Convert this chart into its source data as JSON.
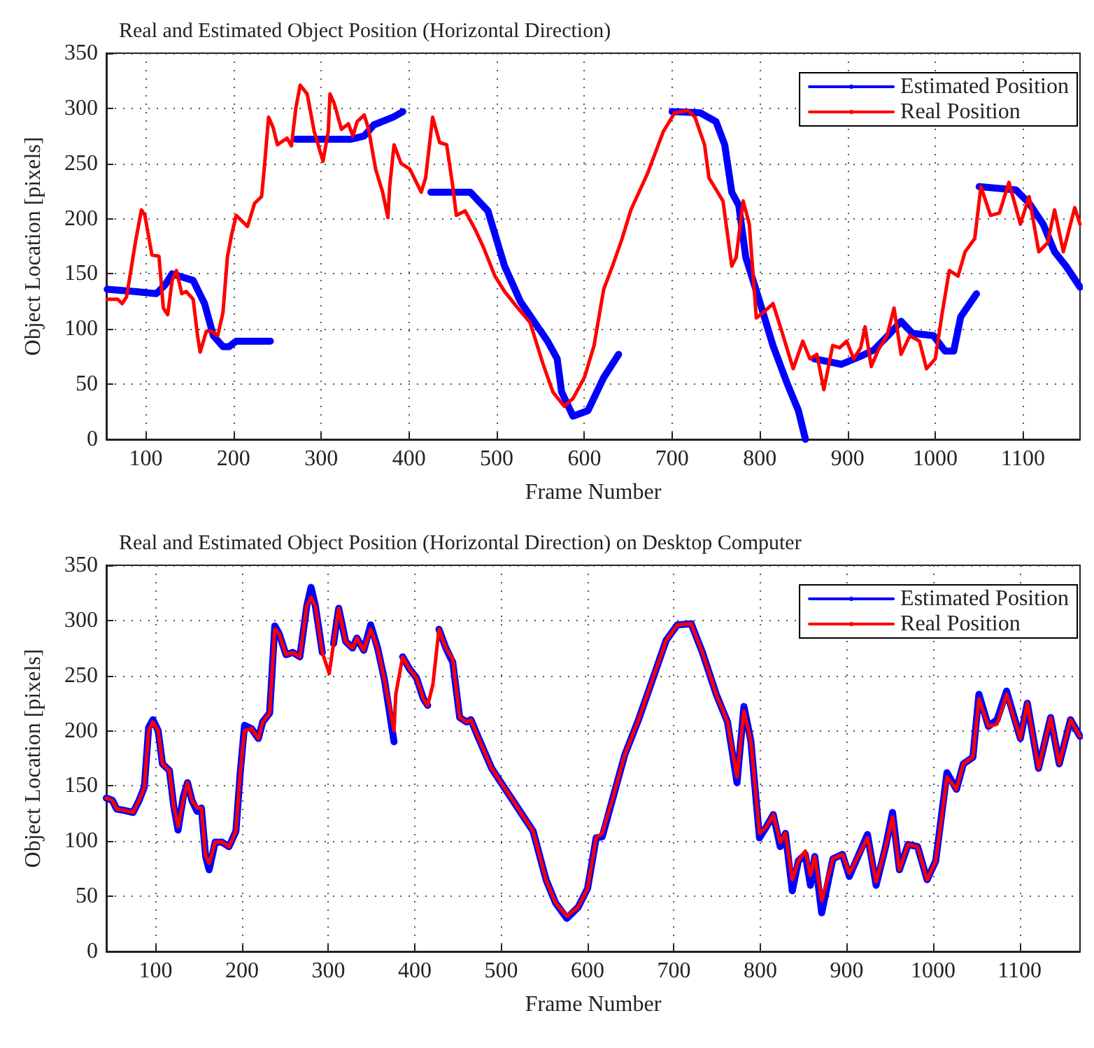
{
  "chart_data": [
    {
      "type": "line",
      "title": "Real and Estimated Object Position (Horizontal Direction)",
      "xlabel": "Frame Number",
      "ylabel": "Object Location [pixels]",
      "xlim": [
        55,
        1165
      ],
      "xticks": [
        100,
        200,
        300,
        400,
        500,
        600,
        700,
        800,
        900,
        1000,
        1100
      ],
      "ylim": [
        0,
        350
      ],
      "yticks": [
        0,
        50,
        100,
        150,
        200,
        250,
        300,
        350
      ],
      "grid": true,
      "legend": "top right",
      "marker": "none",
      "line_style": "solid",
      "series": [
        {
          "name": "Estimated Position",
          "color": "#0000ff",
          "x": [
            56,
            88,
            112,
            122,
            130,
            154,
            167,
            177,
            188,
            195,
            203,
            242,
            256,
            271,
            334,
            349,
            360,
            382,
            393,
            410,
            425,
            470,
            490,
            509,
            527,
            558,
            569,
            574,
            587,
            604,
            622,
            639,
            670,
            700,
            732,
            750,
            760,
            768,
            776,
            784,
            799,
            815,
            831,
            844,
            852,
            855,
            862,
            893,
            914,
            930,
            946,
            961,
            974,
            998,
            1011,
            1021,
            1029,
            1047,
            1049,
            1050,
            1092,
            1107,
            1123,
            1136,
            1149,
            1165
          ],
          "values": [
            136,
            134,
            132,
            140,
            150,
            144,
            123,
            94,
            84,
            84,
            89,
            89,
            null,
            272,
            272,
            275,
            285,
            292,
            297,
            null,
            224,
            224,
            207,
            157,
            125,
            89,
            73,
            43,
            21,
            26,
            56,
            77,
            null,
            297,
            296,
            288,
            267,
            224,
            212,
            165,
            127,
            85,
            51,
            26,
            0,
            null,
            73,
            68,
            75,
            81,
            94,
            107,
            96,
            94,
            80,
            80,
            111,
            132,
            null,
            229,
            226,
            214,
            195,
            170,
            157,
            138
          ]
        },
        {
          "name": "Real Position",
          "color": "#ff0000",
          "x": [
            56,
            68,
            73,
            78,
            83,
            88,
            95,
            99,
            107,
            115,
            120,
            125,
            130,
            135,
            141,
            146,
            154,
            159,
            162,
            169,
            175,
            182,
            188,
            193,
            198,
            203,
            216,
            224,
            232,
            235,
            240,
            245,
            250,
            261,
            266,
            271,
            276,
            284,
            292,
            302,
            308,
            310,
            315,
            323,
            331,
            336,
            341,
            349,
            354,
            362,
            370,
            376,
            378,
            383,
            391,
            401,
            414,
            419,
            427,
            435,
            443,
            450,
            454,
            464,
            475,
            485,
            498,
            509,
            522,
            538,
            553,
            564,
            577,
            587,
            600,
            611,
            622,
            632,
            643,
            653,
            672,
            690,
            703,
            718,
            726,
            737,
            742,
            758,
            768,
            773,
            781,
            788,
            796,
            804,
            815,
            825,
            838,
            849,
            857,
            865,
            873,
            883,
            891,
            899,
            907,
            915,
            920,
            927,
            935,
            945,
            953,
            961,
            971,
            982,
            990,
            1000,
            1008,
            1016,
            1026,
            1034,
            1045,
            1052,
            1063,
            1073,
            1084,
            1097,
            1107,
            1118,
            1128,
            1136,
            1146,
            1159,
            1165
          ],
          "values": [
            127,
            127,
            123,
            129,
            153,
            178,
            208,
            203,
            167,
            166,
            119,
            113,
            144,
            153,
            132,
            134,
            127,
            94,
            79,
            98,
            98,
            94,
            115,
            165,
            186,
            203,
            193,
            214,
            220,
            245,
            292,
            283,
            267,
            273,
            266,
            300,
            321,
            313,
            279,
            252,
            279,
            313,
            304,
            281,
            286,
            275,
            288,
            294,
            281,
            245,
            224,
            201,
            229,
            267,
            250,
            245,
            224,
            237,
            292,
            269,
            267,
            229,
            203,
            207,
            191,
            174,
            148,
            134,
            121,
            106,
            68,
            43,
            30,
            37,
            56,
            85,
            136,
            157,
            182,
            208,
            241,
            279,
            296,
            298,
            292,
            267,
            237,
            216,
            157,
            165,
            216,
            195,
            110,
            115,
            123,
            98,
            64,
            89,
            73,
            77,
            45,
            85,
            83,
            89,
            73,
            83,
            102,
            66,
            81,
            94,
            119,
            77,
            94,
            89,
            64,
            73,
            115,
            153,
            148,
            170,
            182,
            229,
            203,
            205,
            233,
            195,
            220,
            170,
            178,
            208,
            170,
            210,
            195
          ]
        }
      ]
    },
    {
      "type": "line",
      "title": "Real and Estimated Object Position (Horizontal Direction) on Desktop Computer",
      "xlabel": "Frame Number",
      "ylabel": "Object Location [pixels]",
      "xlim": [
        43,
        1170
      ],
      "xticks": [
        100,
        200,
        300,
        400,
        500,
        600,
        700,
        800,
        900,
        1000,
        1100
      ],
      "ylim": [
        0,
        350
      ],
      "yticks": [
        0,
        50,
        100,
        150,
        200,
        250,
        300,
        350
      ],
      "grid": true,
      "legend": "top right",
      "marker": "none",
      "line_style": "solid",
      "x": [
        43,
        50,
        55,
        63,
        74,
        81,
        87,
        92,
        97,
        103,
        108,
        116,
        121,
        126,
        132,
        137,
        142,
        148,
        153,
        158,
        162,
        169,
        177,
        185,
        193,
        198,
        203,
        211,
        219,
        224,
        232,
        238,
        243,
        251,
        259,
        267,
        275,
        280,
        285,
        293,
        301,
        306,
        312,
        320,
        328,
        333,
        341,
        349,
        357,
        365,
        376,
        378,
        386,
        394,
        402,
        410,
        415,
        421,
        428,
        436,
        444,
        452,
        460,
        465,
        473,
        489,
        505,
        521,
        537,
        552,
        563,
        576,
        589,
        600,
        610,
        617,
        630,
        643,
        659,
        675,
        691,
        704,
        720,
        733,
        749,
        762,
        773,
        781,
        789,
        799,
        807,
        815,
        823,
        829,
        837,
        844,
        852,
        858,
        863,
        871,
        884,
        895,
        903,
        913,
        924,
        934,
        945,
        953,
        961,
        971,
        982,
        993,
        1003,
        1016,
        1027,
        1035,
        1046,
        1053,
        1064,
        1074,
        1085,
        1101,
        1109,
        1122,
        1136,
        1146,
        1159,
        1170
      ],
      "series": [
        {
          "name": "Estimated Position",
          "color": "#0000ff",
          "values": [
            139,
            137,
            129,
            128,
            126,
            137,
            149,
            203,
            210,
            200,
            170,
            164,
            132,
            110,
            140,
            153,
            137,
            127,
            130,
            86,
            74,
            99,
            99,
            95,
            109,
            162,
            205,
            202,
            193,
            208,
            216,
            295,
            288,
            269,
            271,
            267,
            313,
            330,
            313,
            271,
            null,
            279,
            311,
            281,
            275,
            284,
            273,
            296,
            275,
            246,
            190,
            null,
            267,
            256,
            248,
            229,
            223,
            null,
            292,
            275,
            262,
            212,
            208,
            210,
            195,
            166,
            147,
            128,
            109,
            65,
            44,
            30,
            40,
            57,
            103,
            104,
            141,
            178,
            210,
            246,
            282,
            296,
            297,
            271,
            233,
            208,
            153,
            222,
            191,
            103,
            113,
            124,
            95,
            107,
            55,
            82,
            88,
            60,
            86,
            35,
            84,
            88,
            68,
            86,
            106,
            60,
            95,
            126,
            74,
            97,
            95,
            65,
            82,
            162,
            147,
            170,
            176,
            233,
            204,
            210,
            236,
            193,
            225,
            166,
            212,
            170,
            210,
            195
          ]
        },
        {
          "name": "Real Position",
          "color": "#ff0000",
          "values": [
            139,
            137,
            129,
            128,
            126,
            137,
            149,
            200,
            208,
            200,
            170,
            164,
            132,
            113,
            137,
            153,
            137,
            130,
            130,
            86,
            80,
            99,
            99,
            95,
            109,
            162,
            200,
            202,
            193,
            208,
            216,
            292,
            288,
            269,
            271,
            267,
            313,
            321,
            313,
            271,
            252,
            279,
            311,
            281,
            275,
            284,
            273,
            292,
            275,
            246,
            200,
            233,
            267,
            256,
            248,
            229,
            223,
            242,
            292,
            275,
            265,
            212,
            208,
            210,
            195,
            166,
            147,
            128,
            109,
            65,
            44,
            32,
            40,
            57,
            103,
            107,
            141,
            178,
            210,
            246,
            282,
            296,
            297,
            271,
            233,
            208,
            158,
            218,
            191,
            107,
            113,
            124,
            99,
            107,
            65,
            82,
            91,
            69,
            86,
            46,
            84,
            88,
            71,
            86,
            103,
            63,
            95,
            122,
            74,
            97,
            95,
            65,
            82,
            158,
            147,
            170,
            176,
            229,
            204,
            206,
            233,
            193,
            225,
            166,
            212,
            170,
            210,
            195
          ]
        }
      ]
    }
  ]
}
